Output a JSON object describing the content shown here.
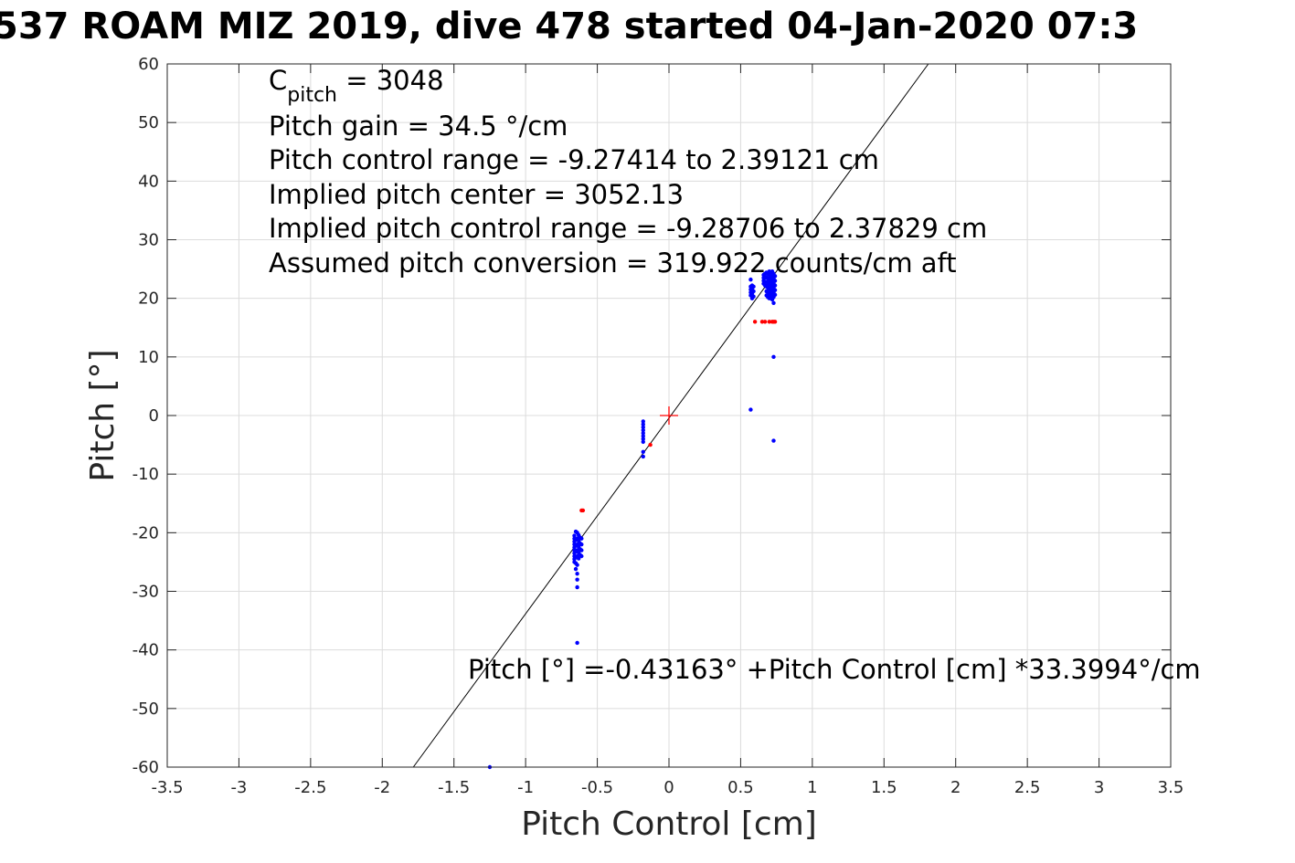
{
  "chart_data": {
    "type": "scatter",
    "title": "537 ROAM MIZ 2019, dive 478 started 04-Jan-2020 07:3",
    "xlabel": "Pitch Control [cm]",
    "ylabel": "Pitch [°]",
    "xlim": [
      -3.5,
      3.5
    ],
    "ylim": [
      -60,
      60
    ],
    "xticks": [
      -3.5,
      -3,
      -2.5,
      -2,
      -1.5,
      -1,
      -0.5,
      0,
      0.5,
      1,
      1.5,
      2,
      2.5,
      3,
      3.5
    ],
    "xtick_labels": [
      "-3.5",
      "-3",
      "-2.5",
      "-2",
      "-1.5",
      "-1",
      "-0.5",
      "0",
      "0.5",
      "1",
      "1.5",
      "2",
      "2.5",
      "3",
      "3.5"
    ],
    "yticks": [
      -60,
      -50,
      -40,
      -30,
      -20,
      -10,
      0,
      10,
      20,
      30,
      40,
      50,
      60
    ],
    "ytick_labels": [
      "-60",
      "-50",
      "-40",
      "-30",
      "-20",
      "-10",
      "0",
      "10",
      "20",
      "30",
      "40",
      "50",
      "60"
    ],
    "grid": true,
    "info_text": {
      "c_pitch_prefix": "C",
      "c_pitch_sub": "pitch",
      "c_pitch_suffix": " = 3048",
      "lines": [
        "Pitch gain = 34.5 °/cm",
        "Pitch control range = -9.27414 to 2.39121 cm",
        "Implied pitch center = 3052.13",
        "Implied pitch control range = -9.28706 to 2.37829 cm",
        "Assumed pitch conversion = 319.922 counts/cm aft"
      ]
    },
    "fit_equation": "Pitch [°] =-0.43163° +Pitch Control [cm] *33.3994°/cm",
    "fit_line": {
      "intercept": -0.43163,
      "slope": 33.3994,
      "color": "#000000"
    },
    "center_marker": {
      "x": 0,
      "y": 0,
      "color": "#ff0000"
    },
    "series": [
      {
        "color": "#0000ff",
        "points": [
          [
            -0.66,
            -20.5
          ],
          [
            -0.66,
            -21.0
          ],
          [
            -0.66,
            -21.5
          ],
          [
            -0.66,
            -22.0
          ],
          [
            -0.66,
            -22.5
          ],
          [
            -0.66,
            -23.0
          ],
          [
            -0.66,
            -23.5
          ],
          [
            -0.66,
            -24.0
          ],
          [
            -0.66,
            -24.5
          ],
          [
            -0.66,
            -25.0
          ],
          [
            -0.65,
            -19.8
          ],
          [
            -0.65,
            -21.2
          ],
          [
            -0.65,
            -22.2
          ],
          [
            -0.65,
            -23.2
          ],
          [
            -0.65,
            -24.2
          ],
          [
            -0.65,
            -25.2
          ],
          [
            -0.65,
            -26.2
          ],
          [
            -0.64,
            -20.0
          ],
          [
            -0.64,
            -21.0
          ],
          [
            -0.64,
            -22.0
          ],
          [
            -0.64,
            -23.0
          ],
          [
            -0.64,
            -24.0
          ],
          [
            -0.64,
            -25.5
          ],
          [
            -0.64,
            -27.0
          ],
          [
            -0.64,
            -28.0
          ],
          [
            -0.64,
            -29.3
          ],
          [
            -0.63,
            -20.4
          ],
          [
            -0.63,
            -21.4
          ],
          [
            -0.63,
            -22.4
          ],
          [
            -0.63,
            -23.4
          ],
          [
            -0.63,
            -24.4
          ],
          [
            -0.62,
            -20.8
          ],
          [
            -0.62,
            -21.8
          ],
          [
            -0.62,
            -22.8
          ],
          [
            -0.62,
            -23.8
          ],
          [
            -0.61,
            -21.0
          ],
          [
            -0.61,
            -22.0
          ],
          [
            -0.61,
            -23.0
          ],
          [
            -0.61,
            -24.0
          ],
          [
            -0.64,
            -38.8
          ],
          [
            -1.25,
            -60.0
          ],
          [
            -0.18,
            -1.0
          ],
          [
            -0.18,
            -1.5
          ],
          [
            -0.18,
            -2.0
          ],
          [
            -0.18,
            -2.5
          ],
          [
            -0.18,
            -3.0
          ],
          [
            -0.18,
            -3.5
          ],
          [
            -0.18,
            -4.0
          ],
          [
            -0.18,
            -4.5
          ],
          [
            -0.18,
            -6.2
          ],
          [
            -0.18,
            -7.0
          ],
          [
            0.57,
            20.5
          ],
          [
            0.57,
            21.0
          ],
          [
            0.57,
            21.5
          ],
          [
            0.57,
            22.0
          ],
          [
            0.57,
            23.2
          ],
          [
            0.58,
            20.0
          ],
          [
            0.58,
            20.8
          ],
          [
            0.58,
            21.6
          ],
          [
            0.58,
            22.2
          ],
          [
            0.59,
            20.3
          ],
          [
            0.59,
            21.2
          ],
          [
            0.59,
            22.0
          ],
          [
            0.66,
            22.5
          ],
          [
            0.66,
            23.0
          ],
          [
            0.66,
            23.5
          ],
          [
            0.66,
            24.0
          ],
          [
            0.67,
            22.2
          ],
          [
            0.67,
            22.8
          ],
          [
            0.67,
            23.5
          ],
          [
            0.67,
            24.2
          ],
          [
            0.68,
            20.5
          ],
          [
            0.68,
            21.2
          ],
          [
            0.68,
            22.0
          ],
          [
            0.68,
            22.8
          ],
          [
            0.68,
            23.6
          ],
          [
            0.68,
            24.4
          ],
          [
            0.69,
            20.2
          ],
          [
            0.69,
            21.0
          ],
          [
            0.69,
            21.8
          ],
          [
            0.69,
            22.6
          ],
          [
            0.69,
            23.4
          ],
          [
            0.69,
            24.2
          ],
          [
            0.7,
            20.0
          ],
          [
            0.7,
            20.8
          ],
          [
            0.7,
            21.6
          ],
          [
            0.7,
            22.4
          ],
          [
            0.7,
            23.2
          ],
          [
            0.7,
            24.0
          ],
          [
            0.7,
            24.6
          ],
          [
            0.71,
            20.4
          ],
          [
            0.71,
            21.2
          ],
          [
            0.71,
            22.0
          ],
          [
            0.71,
            22.8
          ],
          [
            0.71,
            23.6
          ],
          [
            0.71,
            24.4
          ],
          [
            0.72,
            19.8
          ],
          [
            0.72,
            20.6
          ],
          [
            0.72,
            21.4
          ],
          [
            0.72,
            22.2
          ],
          [
            0.72,
            23.0
          ],
          [
            0.72,
            23.8
          ],
          [
            0.72,
            24.6
          ],
          [
            0.73,
            20.2
          ],
          [
            0.73,
            21.0
          ],
          [
            0.73,
            21.8
          ],
          [
            0.73,
            22.6
          ],
          [
            0.73,
            23.4
          ],
          [
            0.73,
            24.2
          ],
          [
            0.73,
            19.2
          ],
          [
            0.74,
            20.6
          ],
          [
            0.74,
            21.4
          ],
          [
            0.74,
            22.2
          ],
          [
            0.74,
            23.0
          ],
          [
            0.74,
            23.8
          ],
          [
            0.73,
            10.0
          ],
          [
            0.57,
            1.0
          ],
          [
            0.73,
            -4.3
          ]
        ]
      },
      {
        "color": "#ff0000",
        "points": [
          [
            -0.61,
            -16.2
          ],
          [
            -0.6,
            -16.2
          ],
          [
            -0.13,
            -5.0
          ],
          [
            0.6,
            16.0
          ],
          [
            0.65,
            16.0
          ],
          [
            0.67,
            16.0
          ],
          [
            0.7,
            16.0
          ],
          [
            0.72,
            16.0
          ],
          [
            0.73,
            16.0
          ],
          [
            0.74,
            16.0
          ]
        ]
      }
    ]
  }
}
